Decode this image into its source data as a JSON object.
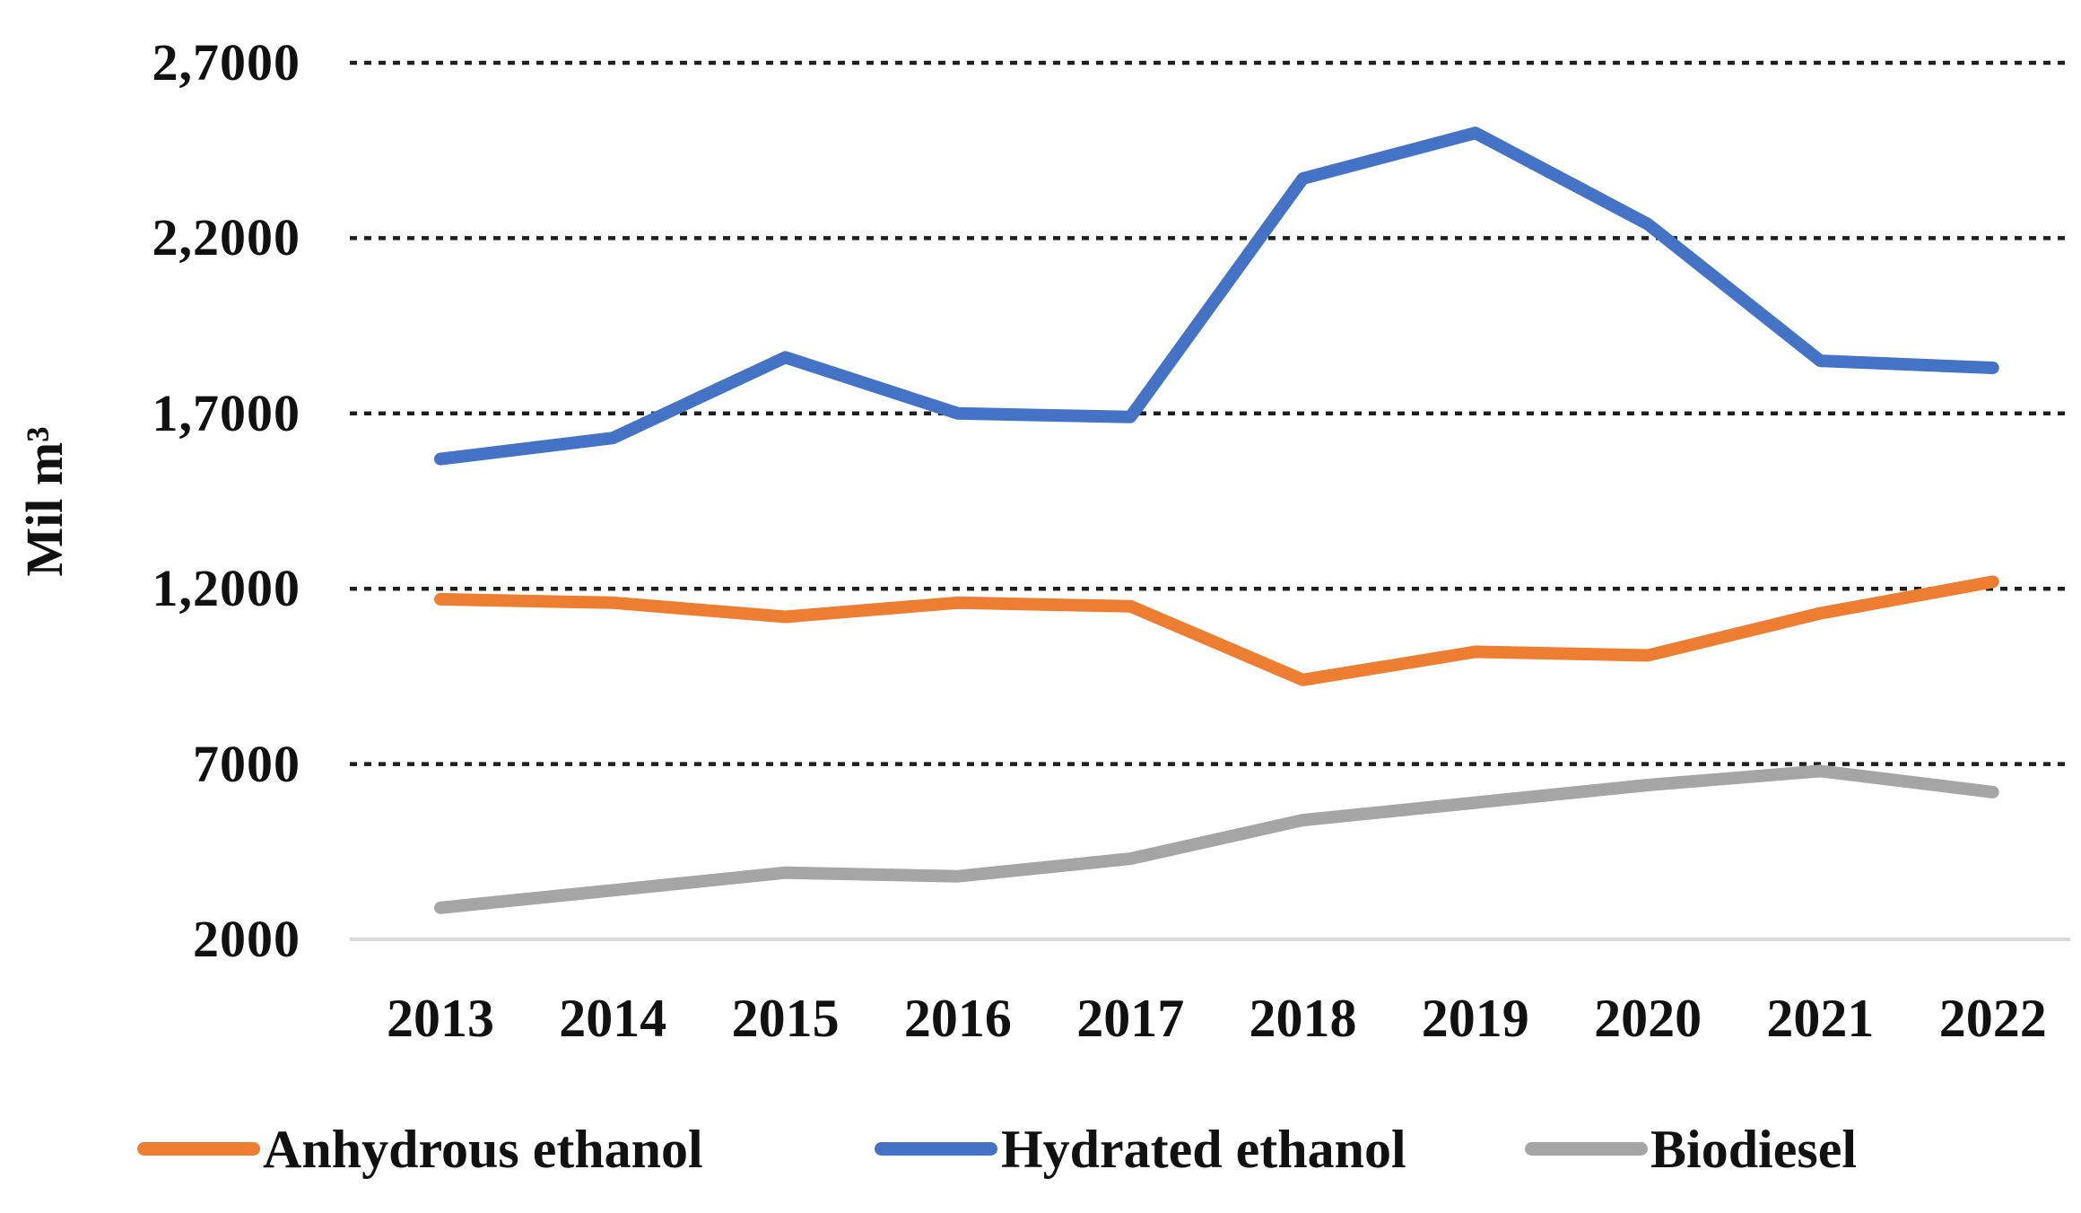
{
  "colors": {
    "gridline": "#1f1f1f",
    "baseline": "#d9d9d9",
    "anhydrous": "#ED7D31",
    "hydrated": "#4472C4",
    "biodiesel": "#A5A5A5"
  },
  "y_axis": {
    "title": "Mil m³",
    "ticks": [
      {
        "value": 27000,
        "label": "2,7000"
      },
      {
        "value": 22000,
        "label": "2,2000"
      },
      {
        "value": 17000,
        "label": "1,7000"
      },
      {
        "value": 12000,
        "label": "1,2000"
      },
      {
        "value": 7000,
        "label": "7000"
      },
      {
        "value": 2000,
        "label": "2000"
      }
    ]
  },
  "chart_data": {
    "type": "line",
    "title": "",
    "xlabel": "",
    "ylabel": "Mil m³",
    "ylim": [
      2000,
      27000
    ],
    "grid": "horizontal-dashed",
    "legend_position": "bottom",
    "categories": [
      "2013",
      "2014",
      "2015",
      "2016",
      "2017",
      "2018",
      "2019",
      "2020",
      "2021",
      "2022"
    ],
    "series": [
      {
        "name": "Anhydrous ethanol",
        "color": "#ED7D31",
        "values": [
          11700,
          11600,
          11200,
          11600,
          11500,
          9400,
          10200,
          10100,
          11300,
          12200
        ]
      },
      {
        "name": "Hydrated ethanol",
        "color": "#4472C4",
        "values": [
          15700,
          16300,
          18600,
          17000,
          16900,
          23700,
          25000,
          22400,
          18500,
          18300
        ]
      },
      {
        "name": "Biodiesel",
        "color": "#A5A5A5",
        "values": [
          2900,
          3400,
          3900,
          3800,
          4300,
          5400,
          5900,
          6400,
          6800,
          6200
        ]
      }
    ]
  }
}
